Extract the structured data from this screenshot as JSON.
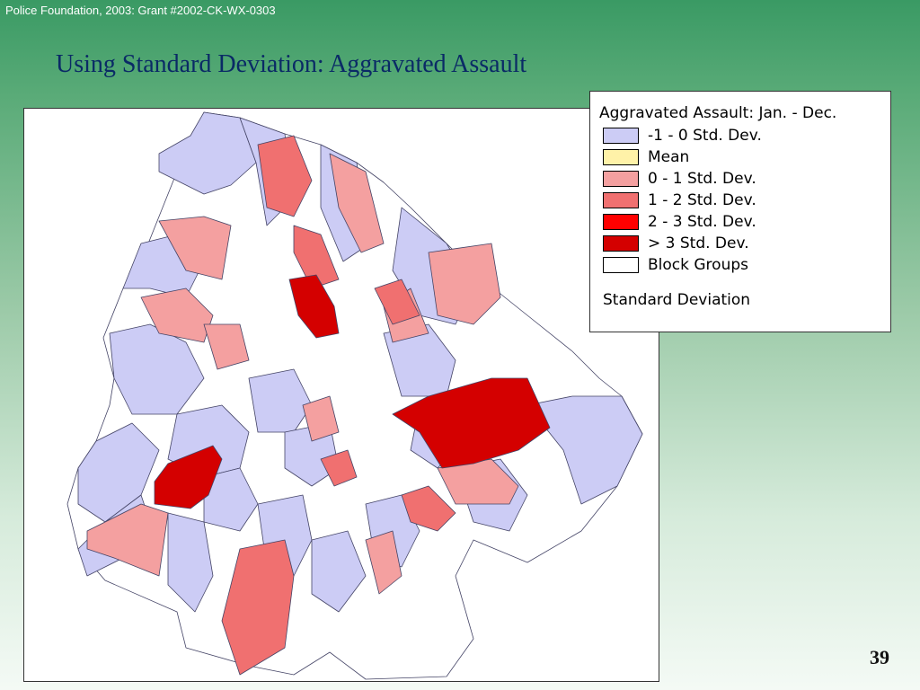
{
  "header": {
    "credit": "Police Foundation, 2003: Grant #2002-CK-WX-0303",
    "title": "Using Standard Deviation: Aggravated Assault"
  },
  "legend": {
    "title": "Aggravated Assault: Jan. - Dec.",
    "items": [
      {
        "label": "-1 - 0 Std. Dev.",
        "color": "#ccccf5"
      },
      {
        "label": "Mean",
        "color": "#fff2a8"
      },
      {
        "label": "0 - 1 Std. Dev.",
        "color": "#f4a0a0"
      },
      {
        "label": "1 - 2 Std. Dev.",
        "color": "#f07070"
      },
      {
        "label": "2 - 3 Std. Dev.",
        "color": "#ff0000"
      },
      {
        "label": "> 3 Std. Dev.",
        "color": "#d40000"
      },
      {
        "label": "Block Groups",
        "color": "#ffffff"
      }
    ],
    "footer": "Standard Deviation"
  },
  "map": {
    "border_color": "#333333",
    "region_stroke": "#444466"
  },
  "slide_number": "39"
}
